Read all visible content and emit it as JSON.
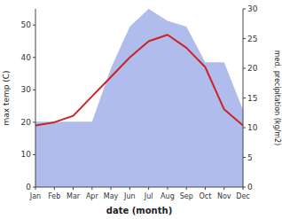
{
  "chart_data": {
    "type": "line",
    "xlabel": "date (month)",
    "ylabel": "max temp (C)",
    "y2label": "med. precipitation (kg/m2)",
    "categories": [
      "Jan",
      "Feb",
      "Mar",
      "Apr",
      "May",
      "Jun",
      "Jul",
      "Aug",
      "Sep",
      "Oct",
      "Nov",
      "Dec"
    ],
    "series": [
      {
        "type": "area",
        "axis": "y2",
        "color": "#b0bcec",
        "values": [
          11,
          11,
          11,
          11,
          20,
          27,
          30,
          28,
          27,
          21,
          21,
          13
        ]
      },
      {
        "type": "line",
        "color": "#cc2222",
        "values": [
          19,
          20,
          22,
          28,
          34,
          40,
          45,
          47,
          43,
          37,
          24,
          19
        ]
      }
    ],
    "ylim": [
      0,
      55
    ],
    "yticks": [
      0,
      10,
      20,
      30,
      40,
      50
    ],
    "y2lim": [
      0,
      30
    ],
    "y2ticks": [
      0,
      5,
      10,
      15,
      20,
      25,
      30
    ],
    "grid": false
  }
}
